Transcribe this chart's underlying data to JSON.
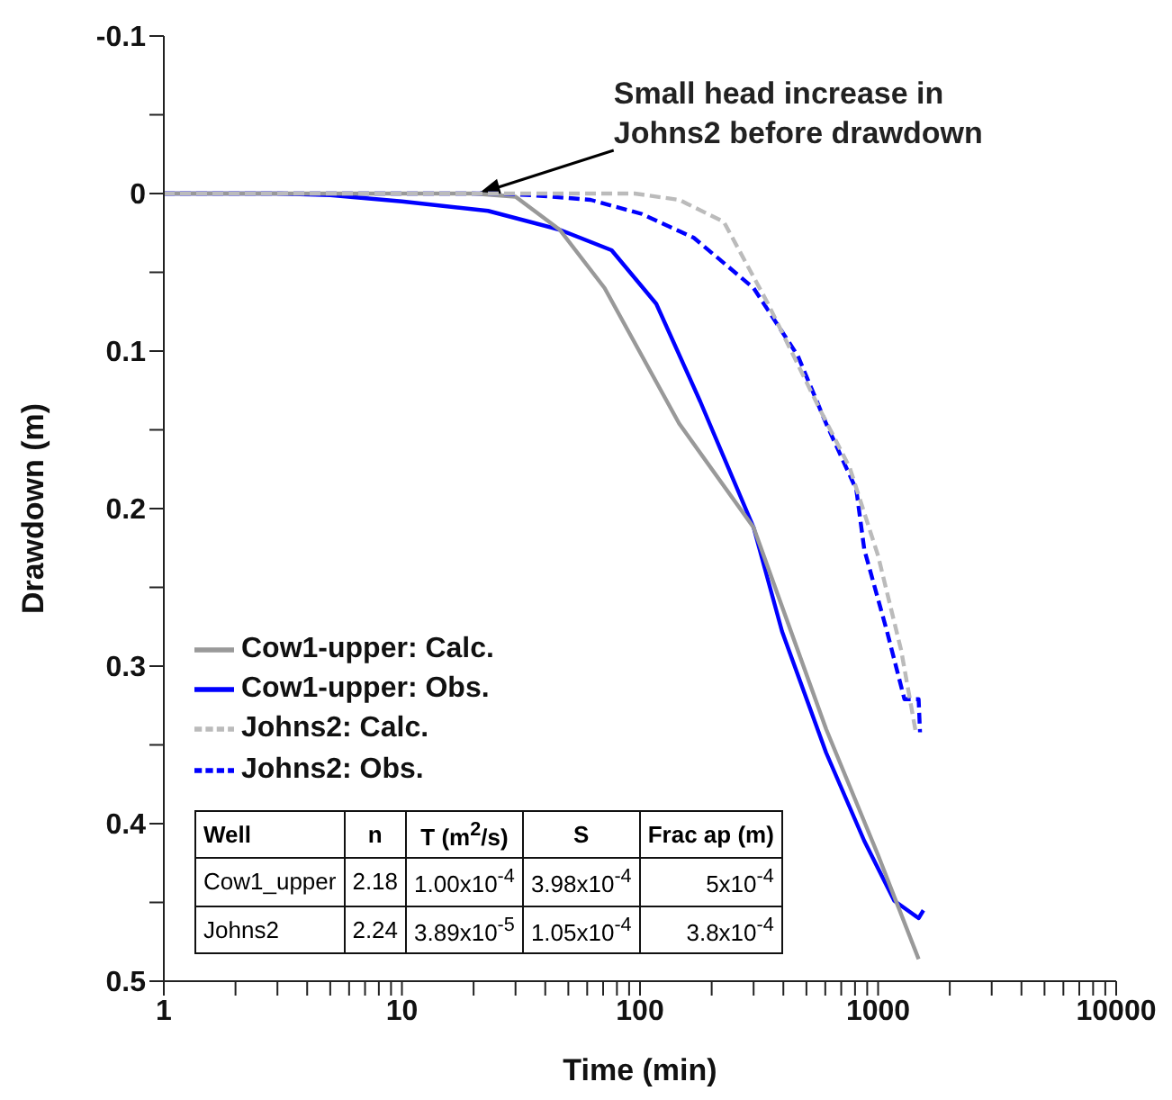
{
  "chart_data": {
    "type": "line",
    "xlabel": "Time (min)",
    "ylabel": "Drawdown (m)",
    "log": "x",
    "grid": false,
    "legend": "bottom left",
    "marker": "none",
    "xlim": [
      1,
      10000
    ],
    "xticks": [
      1,
      {
        "value": 2,
        "label": null
      },
      {
        "value": 3,
        "label": null
      },
      {
        "value": 4,
        "label": null
      },
      {
        "value": 5,
        "label": null
      },
      {
        "value": 6,
        "label": null
      },
      {
        "value": 7,
        "label": null
      },
      {
        "value": 8,
        "label": null
      },
      {
        "value": 9,
        "label": null
      },
      10,
      {
        "value": 20,
        "label": null
      },
      {
        "value": 30,
        "label": null
      },
      {
        "value": 40,
        "label": null
      },
      {
        "value": 50,
        "label": null
      },
      {
        "value": 60,
        "label": null
      },
      {
        "value": 70,
        "label": null
      },
      {
        "value": 80,
        "label": null
      },
      {
        "value": 90,
        "label": null
      },
      100,
      {
        "value": 200,
        "label": null
      },
      {
        "value": 300,
        "label": null
      },
      {
        "value": 400,
        "label": null
      },
      {
        "value": 500,
        "label": null
      },
      {
        "value": 600,
        "label": null
      },
      {
        "value": 700,
        "label": null
      },
      {
        "value": 800,
        "label": null
      },
      {
        "value": 900,
        "label": null
      },
      1000,
      {
        "value": 2000,
        "label": null
      },
      {
        "value": 3000,
        "label": null
      },
      {
        "value": 4000,
        "label": null
      },
      {
        "value": 5000,
        "label": null
      },
      {
        "value": 6000,
        "label": null
      },
      {
        "value": 7000,
        "label": null
      },
      {
        "value": 8000,
        "label": null
      },
      {
        "value": 9000,
        "label": null
      },
      10000
    ],
    "ylim": [
      0.5,
      -0.1
    ],
    "yticks": [
      -0.1,
      {
        "value": -0.05,
        "label": null
      },
      0,
      {
        "value": 0.05,
        "label": null
      },
      0.1,
      {
        "value": 0.15,
        "label": null
      },
      0.2,
      {
        "value": 0.25,
        "label": null
      },
      0.3,
      {
        "value": 0.35,
        "label": null
      },
      0.4,
      {
        "value": 0.45,
        "label": null
      },
      0.5
    ],
    "series": [
      {
        "name": "Cow1-upper: Obs.",
        "color": "#0000ff",
        "line_style": "solid",
        "x": [
          1,
          3,
          5,
          10,
          23,
          46,
          76,
          117,
          179,
          300,
          395,
          605,
          875,
          1170,
          1480,
          1550
        ],
        "values": [
          0,
          0,
          0.001,
          0.005,
          0.011,
          0.023,
          0.036,
          0.07,
          0.132,
          0.212,
          0.278,
          0.355,
          0.411,
          0.449,
          0.46,
          0.455
        ]
      },
      {
        "name": "Cow1-upper: Calc.",
        "color": "#999999",
        "line_style": "solid",
        "x": [
          1,
          10,
          20,
          30,
          46,
          71,
          146,
          300,
          605,
          1000,
          1480
        ],
        "values": [
          0,
          0,
          0,
          0.002,
          0.023,
          0.06,
          0.146,
          0.212,
          0.34,
          0.42,
          0.486
        ]
      },
      {
        "name": "Johns2: Obs.",
        "color": "#0000ff",
        "line_style": "dashed",
        "x": [
          1,
          10,
          25,
          35,
          62,
          102,
          168,
          300,
          460,
          605,
          810,
          875,
          1090,
          1290,
          1480,
          1500
        ],
        "values": [
          0,
          0,
          0,
          0.001,
          0.004,
          0.013,
          0.028,
          0.06,
          0.103,
          0.146,
          0.188,
          0.226,
          0.278,
          0.321,
          0.321,
          0.342
        ]
      },
      {
        "name": "Johns2: Calc.",
        "color": "#bbbbbb",
        "line_style": "dashed",
        "x": [
          1,
          10,
          50,
          95,
          146,
          225,
          345,
          565,
          760,
          1000,
          1250,
          1440
        ],
        "values": [
          0,
          0,
          0,
          0,
          0.004,
          0.018,
          0.07,
          0.136,
          0.174,
          0.23,
          0.29,
          0.342
        ]
      }
    ],
    "annotations": [
      {
        "text": "Small head increase in Johns2 before drawdown",
        "x": 21,
        "y": 0
      },
      "Well",
      "n",
      "T (m$^{2}$/s)",
      "S",
      "Frac ap (m)",
      "Cow1_upper",
      "2.18",
      "1.00x10$^{-4}$",
      "3.98x10$^{-4}$",
      "5x10$^{-4}$",
      "Johns2",
      "2.24",
      "3.89x10$^{-5}$",
      "1.05x10$^{-4}$",
      "3.8x10$^{-4}$"
    ]
  }
}
